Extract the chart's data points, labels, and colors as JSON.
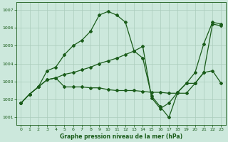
{
  "title": "Graphe pression niveau de la mer (hPa)",
  "background_color": "#cce8dc",
  "grid_color": "#aaccbb",
  "line_color": "#1a5c1a",
  "xlim": [
    -0.5,
    23.5
  ],
  "ylim": [
    1000.6,
    1007.4
  ],
  "yticks": [
    1001,
    1002,
    1003,
    1004,
    1005,
    1006,
    1007
  ],
  "xticks": [
    0,
    1,
    2,
    3,
    4,
    5,
    6,
    7,
    8,
    9,
    10,
    11,
    12,
    13,
    14,
    15,
    16,
    17,
    18,
    19,
    20,
    21,
    22,
    23
  ],
  "series1_x": [
    0,
    1,
    2,
    3,
    4,
    5,
    6,
    7,
    8,
    9,
    10,
    11,
    12,
    13,
    14,
    15,
    16,
    17,
    18,
    19,
    20,
    21,
    22,
    23
  ],
  "series1_y": [
    1001.8,
    1002.3,
    1002.7,
    1003.6,
    1003.8,
    1004.5,
    1005.0,
    1005.3,
    1005.8,
    1006.7,
    1006.9,
    1006.7,
    1006.3,
    1004.7,
    1004.3,
    1002.2,
    1001.6,
    1001.0,
    1002.4,
    1002.9,
    1003.5,
    1005.1,
    1006.3,
    1006.2
  ],
  "series2_x": [
    0,
    1,
    2,
    3,
    4,
    5,
    6,
    7,
    8,
    9,
    10,
    11,
    12,
    13,
    14,
    15,
    16,
    17,
    18,
    19,
    20,
    21,
    22,
    23
  ],
  "series2_y": [
    1001.8,
    1002.3,
    1002.7,
    1003.1,
    1003.2,
    1003.4,
    1003.5,
    1003.65,
    1003.8,
    1004.0,
    1004.15,
    1004.3,
    1004.5,
    1004.7,
    1004.95,
    1002.1,
    1001.5,
    1001.8,
    1002.4,
    1002.9,
    1002.9,
    1003.5,
    1003.6,
    1002.9
  ],
  "series3_x": [
    0,
    1,
    2,
    3,
    4,
    5,
    6,
    7,
    8,
    9,
    10,
    11,
    12,
    13,
    14,
    15,
    16,
    17,
    18,
    19,
    20,
    21,
    22,
    23
  ],
  "series3_y": [
    1001.8,
    1002.3,
    1002.7,
    1003.1,
    1003.2,
    1002.7,
    1002.7,
    1002.7,
    1002.65,
    1002.65,
    1002.55,
    1002.5,
    1002.5,
    1002.5,
    1002.45,
    1002.4,
    1002.4,
    1002.35,
    1002.35,
    1002.35,
    1002.9,
    1003.5,
    1006.2,
    1006.1
  ]
}
